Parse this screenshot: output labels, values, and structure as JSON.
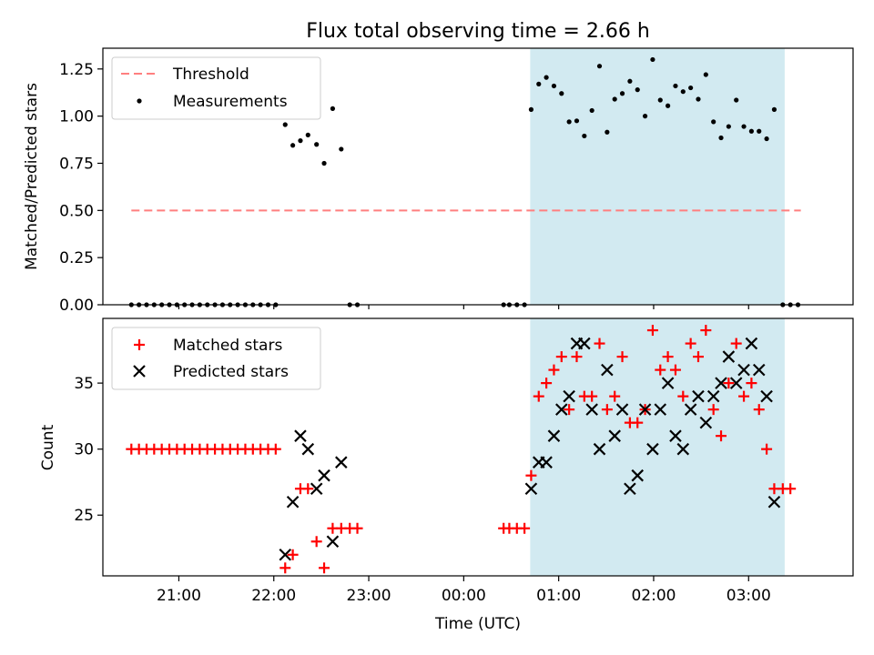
{
  "title": "Flux total observing time = 2.66 h",
  "chart_data": [
    {
      "type": "scatter",
      "ylabel": "Matched/Predicted stars",
      "ylim": [
        0,
        1.36
      ],
      "yticks": [
        0.0,
        0.25,
        0.5,
        0.75,
        1.0,
        1.25
      ],
      "ytick_labels": [
        "0.00",
        "0.25",
        "0.50",
        "0.75",
        "1.00",
        "1.25"
      ],
      "xlim_hours": [
        20.2,
        28.1
      ],
      "legend_position": "upper-left",
      "shaded_span_hours": [
        24.7,
        27.38
      ],
      "shaded_color": "#add8e6",
      "threshold": {
        "name": "Threshold",
        "value": 0.5,
        "x_range_hours": [
          20.5,
          27.55
        ],
        "color": "#ff7f7f"
      },
      "series": [
        {
          "name": "Measurements",
          "color": "#000000",
          "points": [
            [
              20.5,
              0
            ],
            [
              20.58,
              0
            ],
            [
              20.66,
              0
            ],
            [
              20.74,
              0
            ],
            [
              20.82,
              0
            ],
            [
              20.9,
              0
            ],
            [
              20.98,
              0
            ],
            [
              21.06,
              0
            ],
            [
              21.14,
              0
            ],
            [
              21.22,
              0
            ],
            [
              21.3,
              0
            ],
            [
              21.38,
              0
            ],
            [
              21.46,
              0
            ],
            [
              21.54,
              0
            ],
            [
              21.62,
              0
            ],
            [
              21.7,
              0
            ],
            [
              21.78,
              0
            ],
            [
              21.86,
              0
            ],
            [
              21.94,
              0
            ],
            [
              22.02,
              0
            ],
            [
              22.12,
              0.955
            ],
            [
              22.2,
              0.845
            ],
            [
              22.28,
              0.87
            ],
            [
              22.36,
              0.9
            ],
            [
              22.45,
              0.85
            ],
            [
              22.53,
              0.75
            ],
            [
              22.62,
              1.04
            ],
            [
              22.71,
              0.825
            ],
            [
              22.8,
              0
            ],
            [
              22.88,
              0
            ],
            [
              24.42,
              0
            ],
            [
              24.48,
              0
            ],
            [
              24.56,
              0
            ],
            [
              24.64,
              0
            ],
            [
              24.71,
              1.035
            ],
            [
              24.79,
              1.17
            ],
            [
              24.87,
              1.205
            ],
            [
              24.95,
              1.16
            ],
            [
              25.03,
              1.12
            ],
            [
              25.11,
              0.97
            ],
            [
              25.19,
              0.975
            ],
            [
              25.27,
              0.895
            ],
            [
              25.35,
              1.03
            ],
            [
              25.43,
              1.265
            ],
            [
              25.51,
              0.915
            ],
            [
              25.59,
              1.09
            ],
            [
              25.67,
              1.12
            ],
            [
              25.75,
              1.185
            ],
            [
              25.83,
              1.14
            ],
            [
              25.91,
              1.0
            ],
            [
              25.99,
              1.3
            ],
            [
              26.07,
              1.085
            ],
            [
              26.15,
              1.055
            ],
            [
              26.23,
              1.16
            ],
            [
              26.31,
              1.13
            ],
            [
              26.39,
              1.15
            ],
            [
              26.47,
              1.09
            ],
            [
              26.55,
              1.22
            ],
            [
              26.63,
              0.97
            ],
            [
              26.71,
              0.885
            ],
            [
              26.79,
              0.945
            ],
            [
              26.87,
              1.085
            ],
            [
              26.95,
              0.945
            ],
            [
              27.03,
              0.92
            ],
            [
              27.11,
              0.92
            ],
            [
              27.19,
              0.88
            ],
            [
              27.27,
              1.035
            ],
            [
              27.36,
              0
            ],
            [
              27.44,
              0
            ],
            [
              27.52,
              0
            ]
          ]
        }
      ]
    },
    {
      "type": "scatter",
      "xlabel": "Time (UTC)",
      "ylabel": "Count",
      "ylim": [
        20.4,
        39.9
      ],
      "yticks": [
        25,
        30,
        35
      ],
      "ytick_labels": [
        "25",
        "30",
        "35"
      ],
      "xlim_hours": [
        20.2,
        28.1
      ],
      "xticks_hours": [
        21,
        22,
        23,
        24,
        25,
        26,
        27
      ],
      "xtick_labels": [
        "21:00",
        "22:00",
        "23:00",
        "00:00",
        "01:00",
        "02:00",
        "03:00"
      ],
      "legend_position": "upper-left",
      "shaded_span_hours": [
        24.7,
        27.38
      ],
      "shaded_color": "#add8e6",
      "series": [
        {
          "name": "Matched stars",
          "marker": "plus",
          "color": "#ff0000",
          "points": [
            [
              20.5,
              30
            ],
            [
              20.58,
              30
            ],
            [
              20.66,
              30
            ],
            [
              20.74,
              30
            ],
            [
              20.82,
              30
            ],
            [
              20.9,
              30
            ],
            [
              20.98,
              30
            ],
            [
              21.06,
              30
            ],
            [
              21.14,
              30
            ],
            [
              21.22,
              30
            ],
            [
              21.3,
              30
            ],
            [
              21.38,
              30
            ],
            [
              21.46,
              30
            ],
            [
              21.54,
              30
            ],
            [
              21.62,
              30
            ],
            [
              21.7,
              30
            ],
            [
              21.78,
              30
            ],
            [
              21.86,
              30
            ],
            [
              21.94,
              30
            ],
            [
              22.02,
              30
            ],
            [
              22.12,
              21
            ],
            [
              22.2,
              22
            ],
            [
              22.28,
              27
            ],
            [
              22.36,
              27
            ],
            [
              22.45,
              23
            ],
            [
              22.53,
              21
            ],
            [
              22.62,
              24
            ],
            [
              22.71,
              24
            ],
            [
              22.8,
              24
            ],
            [
              22.88,
              24
            ],
            [
              24.42,
              24
            ],
            [
              24.48,
              24
            ],
            [
              24.56,
              24
            ],
            [
              24.64,
              24
            ],
            [
              24.71,
              28
            ],
            [
              24.79,
              34
            ],
            [
              24.87,
              35
            ],
            [
              24.95,
              36
            ],
            [
              25.03,
              37
            ],
            [
              25.11,
              33
            ],
            [
              25.19,
              37
            ],
            [
              25.27,
              34
            ],
            [
              25.35,
              34
            ],
            [
              25.43,
              38
            ],
            [
              25.51,
              33
            ],
            [
              25.59,
              34
            ],
            [
              25.67,
              37
            ],
            [
              25.75,
              32
            ],
            [
              25.83,
              32
            ],
            [
              25.91,
              33
            ],
            [
              25.99,
              39
            ],
            [
              26.07,
              36
            ],
            [
              26.15,
              37
            ],
            [
              26.23,
              36
            ],
            [
              26.31,
              34
            ],
            [
              26.39,
              38
            ],
            [
              26.47,
              37
            ],
            [
              26.55,
              39
            ],
            [
              26.63,
              33
            ],
            [
              26.71,
              31
            ],
            [
              26.79,
              35
            ],
            [
              26.87,
              38
            ],
            [
              26.95,
              34
            ],
            [
              27.03,
              35
            ],
            [
              27.11,
              33
            ],
            [
              27.19,
              30
            ],
            [
              27.27,
              27
            ],
            [
              27.36,
              27
            ],
            [
              27.44,
              27
            ]
          ]
        },
        {
          "name": "Predicted stars",
          "marker": "x",
          "color": "#000000",
          "points": [
            [
              22.12,
              22
            ],
            [
              22.2,
              26
            ],
            [
              22.28,
              31
            ],
            [
              22.36,
              30
            ],
            [
              22.45,
              27
            ],
            [
              22.53,
              28
            ],
            [
              22.62,
              23
            ],
            [
              22.71,
              29
            ],
            [
              24.71,
              27
            ],
            [
              24.79,
              29
            ],
            [
              24.87,
              29
            ],
            [
              24.95,
              31
            ],
            [
              25.03,
              33
            ],
            [
              25.11,
              34
            ],
            [
              25.19,
              38
            ],
            [
              25.27,
              38
            ],
            [
              25.35,
              33
            ],
            [
              25.43,
              30
            ],
            [
              25.51,
              36
            ],
            [
              25.59,
              31
            ],
            [
              25.67,
              33
            ],
            [
              25.75,
              27
            ],
            [
              25.83,
              28
            ],
            [
              25.91,
              33
            ],
            [
              25.99,
              30
            ],
            [
              26.07,
              33
            ],
            [
              26.15,
              35
            ],
            [
              26.23,
              31
            ],
            [
              26.31,
              30
            ],
            [
              26.39,
              33
            ],
            [
              26.47,
              34
            ],
            [
              26.55,
              32
            ],
            [
              26.63,
              34
            ],
            [
              26.71,
              35
            ],
            [
              26.79,
              37
            ],
            [
              26.87,
              35
            ],
            [
              26.95,
              36
            ],
            [
              27.03,
              38
            ],
            [
              27.11,
              36
            ],
            [
              27.19,
              34
            ],
            [
              27.27,
              26
            ]
          ]
        }
      ]
    }
  ]
}
